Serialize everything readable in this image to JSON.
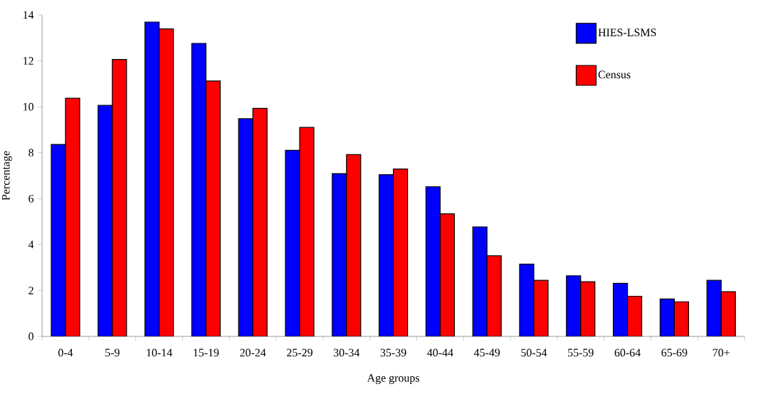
{
  "chart_data": {
    "type": "bar",
    "xlabel": "Age groups",
    "ylabel": "Percentage",
    "categories": [
      "0-4",
      "5-9",
      "10-14",
      "15-19",
      "20-24",
      "25-29",
      "30-34",
      "35-39",
      "40-44",
      "45-49",
      "50-54",
      "55-59",
      "60-64",
      "65-69",
      "70+"
    ],
    "series": [
      {
        "name": "HIES-LSMS",
        "color": "#0000ff",
        "values": [
          8.36,
          10.06,
          13.69,
          12.76,
          9.48,
          8.1,
          7.09,
          7.04,
          6.52,
          4.77,
          3.15,
          2.64,
          2.31,
          1.63,
          2.44
        ]
      },
      {
        "name": "Census",
        "color": "#ff0000",
        "values": [
          10.37,
          12.06,
          13.39,
          11.12,
          9.93,
          9.1,
          7.92,
          7.29,
          5.34,
          3.51,
          2.44,
          2.38,
          1.75,
          1.51,
          1.95
        ]
      }
    ],
    "ylim": [
      0,
      14
    ],
    "yticks": [
      0,
      2,
      4,
      6,
      8,
      10,
      12,
      14
    ],
    "grid": false,
    "legend": "top right"
  }
}
